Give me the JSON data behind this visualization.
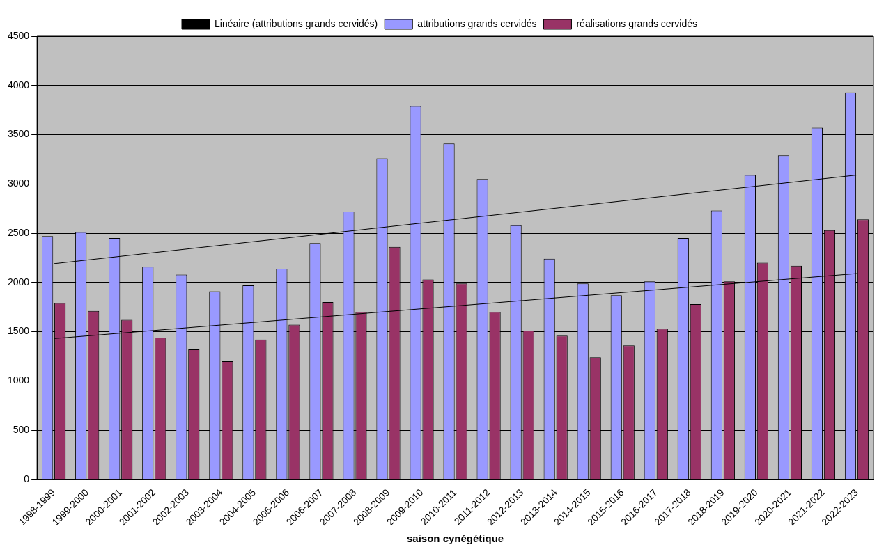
{
  "chart_data": {
    "type": "bar",
    "xlabel": "saison cynégétique",
    "categories": [
      "1998-1999",
      "1999-2000",
      "2000-2001",
      "2001-2002",
      "2002-2003",
      "2003-2004",
      "2004-2005",
      "2005-2006",
      "2006-2007",
      "2007-2008",
      "2008-2009",
      "2009-2010",
      "2010-2011",
      "2011-2012",
      "2012-2013",
      "2013-2014",
      "2014-2015",
      "2015-2016",
      "2016-2017",
      "2017-2018",
      "2018-2019",
      "2019-2020",
      "2020-2021",
      "2021-2022",
      "2022-2023"
    ],
    "series": [
      {
        "name": "attributions grands cervidés",
        "color": "#9999ff",
        "values": [
          2470,
          2510,
          2450,
          2160,
          2080,
          1910,
          1970,
          2140,
          2400,
          2720,
          3260,
          3790,
          3410,
          3050,
          2580,
          2240,
          1990,
          1870,
          2010,
          2450,
          2730,
          3090,
          3290,
          3570,
          3930
        ]
      },
      {
        "name": "réalisations grands cervidés",
        "color": "#993366",
        "values": [
          1790,
          1710,
          1620,
          1440,
          1320,
          1200,
          1420,
          1570,
          1800,
          1700,
          2360,
          2030,
          1990,
          1700,
          1510,
          1460,
          1240,
          1360,
          1530,
          1780,
          2010,
          2200,
          2170,
          2530,
          2640
        ]
      },
      {
        "name": "Linéaire (attributions grands cervidés)",
        "type": "line",
        "color": "#000000",
        "x": [
          "1998-1999",
          "2022-2023"
        ],
        "values": [
          2190,
          3090
        ]
      },
      {
        "type": "line",
        "color": "#000000",
        "x": [
          "1998-1999",
          "2022-2023"
        ],
        "values": [
          1430,
          2090
        ]
      }
    ],
    "ylim": [
      0,
      4500
    ],
    "yticks": [
      0,
      500,
      1000,
      1500,
      2000,
      2500,
      3000,
      3500,
      4000,
      4500
    ],
    "grid": "y",
    "legend": "top",
    "marker": "none"
  }
}
